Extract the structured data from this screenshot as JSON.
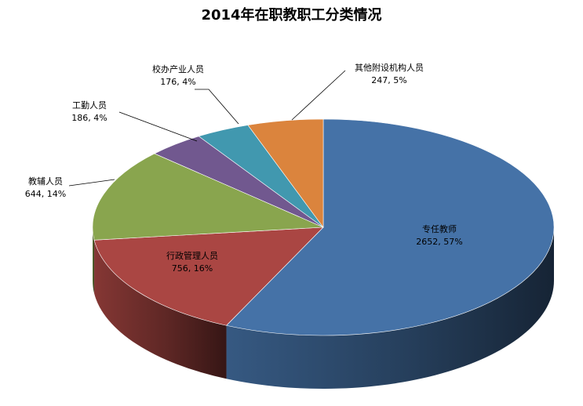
{
  "chart_data": {
    "type": "pie",
    "title": "2014年在职教职工分类情况",
    "slices": [
      {
        "name": "专任教师",
        "value": 2652,
        "percent": "57%",
        "label_value": "2652, 57%",
        "color": "#4572A7"
      },
      {
        "name": "行政管理人员",
        "value": 756,
        "percent": "16%",
        "label_value": "756, 16%",
        "color": "#AA4643"
      },
      {
        "name": "教辅人员",
        "value": 644,
        "percent": "14%",
        "label_value": "644, 14%",
        "color": "#89A54E"
      },
      {
        "name": "工勤人员",
        "value": 186,
        "percent": "4%",
        "label_value": "186, 4%",
        "color": "#71588F"
      },
      {
        "name": "校办产业人员",
        "value": 176,
        "percent": "4%",
        "label_value": "176, 4%",
        "color": "#4198AF"
      },
      {
        "name": "其他附设机构人员",
        "value": 247,
        "percent": "5%",
        "label_value": "247, 5%",
        "color": "#DB843D"
      }
    ],
    "start_angle": "12 o'clock",
    "direction": "clockwise",
    "style": "3d"
  }
}
